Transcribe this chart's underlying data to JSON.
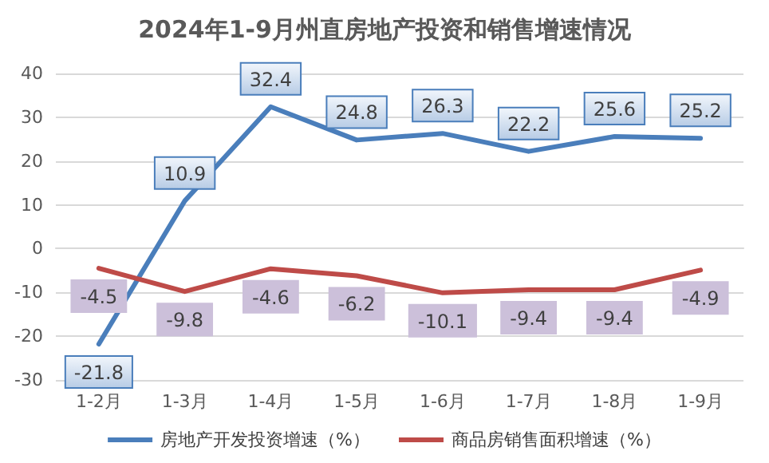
{
  "chart_data": {
    "type": "line",
    "title": "2024年1-9月州直房地产投资和销售增速情况",
    "categories": [
      "1-2月",
      "1-3月",
      "1-4月",
      "1-5月",
      "1-6月",
      "1-7月",
      "1-8月",
      "1-9月"
    ],
    "series": [
      {
        "name": "房地产开发投资增速（%）",
        "color": "#4a7ebb",
        "values": [
          -21.8,
          10.9,
          32.4,
          24.8,
          26.3,
          22.2,
          25.6,
          25.2
        ]
      },
      {
        "name": "商品房销售面积增速（%）",
        "color": "#be4b48",
        "values": [
          -4.5,
          -9.8,
          -4.6,
          -6.2,
          -10.1,
          -9.4,
          -9.4,
          -4.9
        ]
      }
    ],
    "ylim": [
      -30,
      40
    ],
    "yticks": [
      -30,
      -20,
      -10,
      0,
      10,
      20,
      30,
      40
    ],
    "grid": "y",
    "legend": "bottom",
    "marker": "none",
    "line_style": "solid",
    "data_labels": true
  }
}
